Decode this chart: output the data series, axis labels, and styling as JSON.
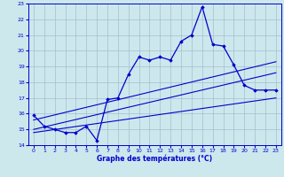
{
  "title": "Graphe des températures (°C)",
  "bg_color": "#cce8ed",
  "line_color": "#0000cc",
  "grid_color": "#aabbd0",
  "xlim": [
    -0.5,
    23.5
  ],
  "ylim": [
    14,
    23
  ],
  "xticks": [
    0,
    1,
    2,
    3,
    4,
    5,
    6,
    7,
    8,
    9,
    10,
    11,
    12,
    13,
    14,
    15,
    16,
    17,
    18,
    19,
    20,
    21,
    22,
    23
  ],
  "yticks": [
    14,
    15,
    16,
    17,
    18,
    19,
    20,
    21,
    22,
    23
  ],
  "main_x": [
    0,
    1,
    2,
    3,
    4,
    5,
    6,
    7,
    8,
    9,
    10,
    11,
    12,
    13,
    14,
    15,
    16,
    17,
    18,
    19,
    20,
    21,
    22,
    23
  ],
  "main_y": [
    15.9,
    15.2,
    15.0,
    14.8,
    14.8,
    15.2,
    14.3,
    16.9,
    17.0,
    18.5,
    19.6,
    19.4,
    19.6,
    19.4,
    20.6,
    21.0,
    22.8,
    20.4,
    20.3,
    19.1,
    17.8,
    17.5,
    17.5,
    17.5
  ],
  "line2_x": [
    0,
    23
  ],
  "line2_y": [
    15.0,
    18.6
  ],
  "line3_x": [
    0,
    23
  ],
  "line3_y": [
    15.6,
    19.3
  ],
  "line4_x": [
    0,
    23
  ],
  "line4_y": [
    14.8,
    17.0
  ]
}
